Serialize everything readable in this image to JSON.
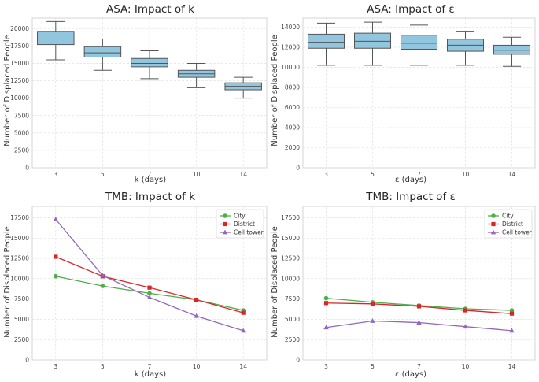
{
  "colors": {
    "box": "#92c5de",
    "city": "#4daf4a",
    "district": "#d62728",
    "cell_tower": "#9467bd"
  },
  "chart_data": [
    {
      "id": "asa_k",
      "type": "box",
      "title": "ASA: Impact of k",
      "xlabel": "k (days)",
      "ylabel": "Number of Displaced People",
      "categories": [
        "3",
        "5",
        "7",
        "10",
        "14"
      ],
      "ylim": [
        0,
        21500
      ],
      "yticks": [
        0,
        2500,
        5000,
        7500,
        10000,
        12500,
        15000,
        17500,
        20000
      ],
      "ytick_labels": [
        "0",
        "2500",
        "5000",
        "7500",
        "10000",
        "12500",
        "15000",
        "17500",
        "20000"
      ],
      "boxes": [
        {
          "min": 15500,
          "q1": 17700,
          "median": 18500,
          "q3": 19600,
          "max": 21000
        },
        {
          "min": 14000,
          "q1": 15900,
          "median": 16500,
          "q3": 17400,
          "max": 18500
        },
        {
          "min": 12800,
          "q1": 14500,
          "median": 15000,
          "q3": 15700,
          "max": 16800
        },
        {
          "min": 11500,
          "q1": 13000,
          "median": 13500,
          "q3": 14000,
          "max": 15000
        },
        {
          "min": 10000,
          "q1": 11200,
          "median": 11700,
          "q3": 12200,
          "max": 13000
        }
      ]
    },
    {
      "id": "asa_eps",
      "type": "box",
      "title": "ASA: Impact of ε",
      "xlabel": "ε (days)",
      "ylabel": "Number of Displaced People",
      "categories": [
        "3",
        "5",
        "7",
        "10",
        "14"
      ],
      "ylim": [
        0,
        14900
      ],
      "yticks": [
        0,
        2000,
        4000,
        6000,
        8000,
        10000,
        12000,
        14000
      ],
      "ytick_labels": [
        "0",
        "2000",
        "4000",
        "6000",
        "8000",
        "10000",
        "12000",
        "14000"
      ],
      "boxes": [
        {
          "min": 10200,
          "q1": 11900,
          "median": 12500,
          "q3": 13300,
          "max": 14400
        },
        {
          "min": 10200,
          "q1": 11900,
          "median": 12600,
          "q3": 13400,
          "max": 14500
        },
        {
          "min": 10200,
          "q1": 11800,
          "median": 12400,
          "q3": 13200,
          "max": 14200
        },
        {
          "min": 10200,
          "q1": 11600,
          "median": 12200,
          "q3": 12800,
          "max": 13600
        },
        {
          "min": 10100,
          "q1": 11300,
          "median": 11700,
          "q3": 12200,
          "max": 13000
        }
      ]
    },
    {
      "id": "tmb_k",
      "type": "line",
      "title": "TMB: Impact of k",
      "xlabel": "k (days)",
      "ylabel": "Number of Displaced People",
      "categories": [
        "3",
        "5",
        "7",
        "10",
        "14"
      ],
      "ylim": [
        0,
        18900
      ],
      "yticks": [
        0,
        2500,
        5000,
        7500,
        10000,
        12500,
        15000,
        17500
      ],
      "ytick_labels": [
        "0",
        "2500",
        "5000",
        "7500",
        "10000",
        "12500",
        "15000",
        "17500"
      ],
      "legend_position": "top-right",
      "series": [
        {
          "name": "City",
          "marker": "circle",
          "values": [
            10300,
            9100,
            8200,
            7400,
            6100
          ]
        },
        {
          "name": "District",
          "marker": "square",
          "values": [
            12700,
            10300,
            8900,
            7400,
            5800
          ]
        },
        {
          "name": "Cell tower",
          "marker": "triangle",
          "values": [
            17300,
            10400,
            7700,
            5400,
            3600
          ]
        }
      ]
    },
    {
      "id": "tmb_eps",
      "type": "line",
      "title": "TMB: Impact of ε",
      "xlabel": "ε (days)",
      "ylabel": "Number of Displaced People",
      "categories": [
        "3",
        "5",
        "7",
        "10",
        "14"
      ],
      "ylim": [
        0,
        18900
      ],
      "yticks": [
        0,
        2500,
        5000,
        7500,
        10000,
        12500,
        15000,
        17500
      ],
      "ytick_labels": [
        "0",
        "2500",
        "5000",
        "7500",
        "10000",
        "12500",
        "15000",
        "17500"
      ],
      "legend_position": "top-right",
      "series": [
        {
          "name": "City",
          "marker": "circle",
          "values": [
            7600,
            7100,
            6700,
            6300,
            6100
          ]
        },
        {
          "name": "District",
          "marker": "square",
          "values": [
            7000,
            6900,
            6600,
            6100,
            5700
          ]
        },
        {
          "name": "Cell tower",
          "marker": "triangle",
          "values": [
            4000,
            4800,
            4600,
            4100,
            3600
          ]
        }
      ]
    }
  ]
}
